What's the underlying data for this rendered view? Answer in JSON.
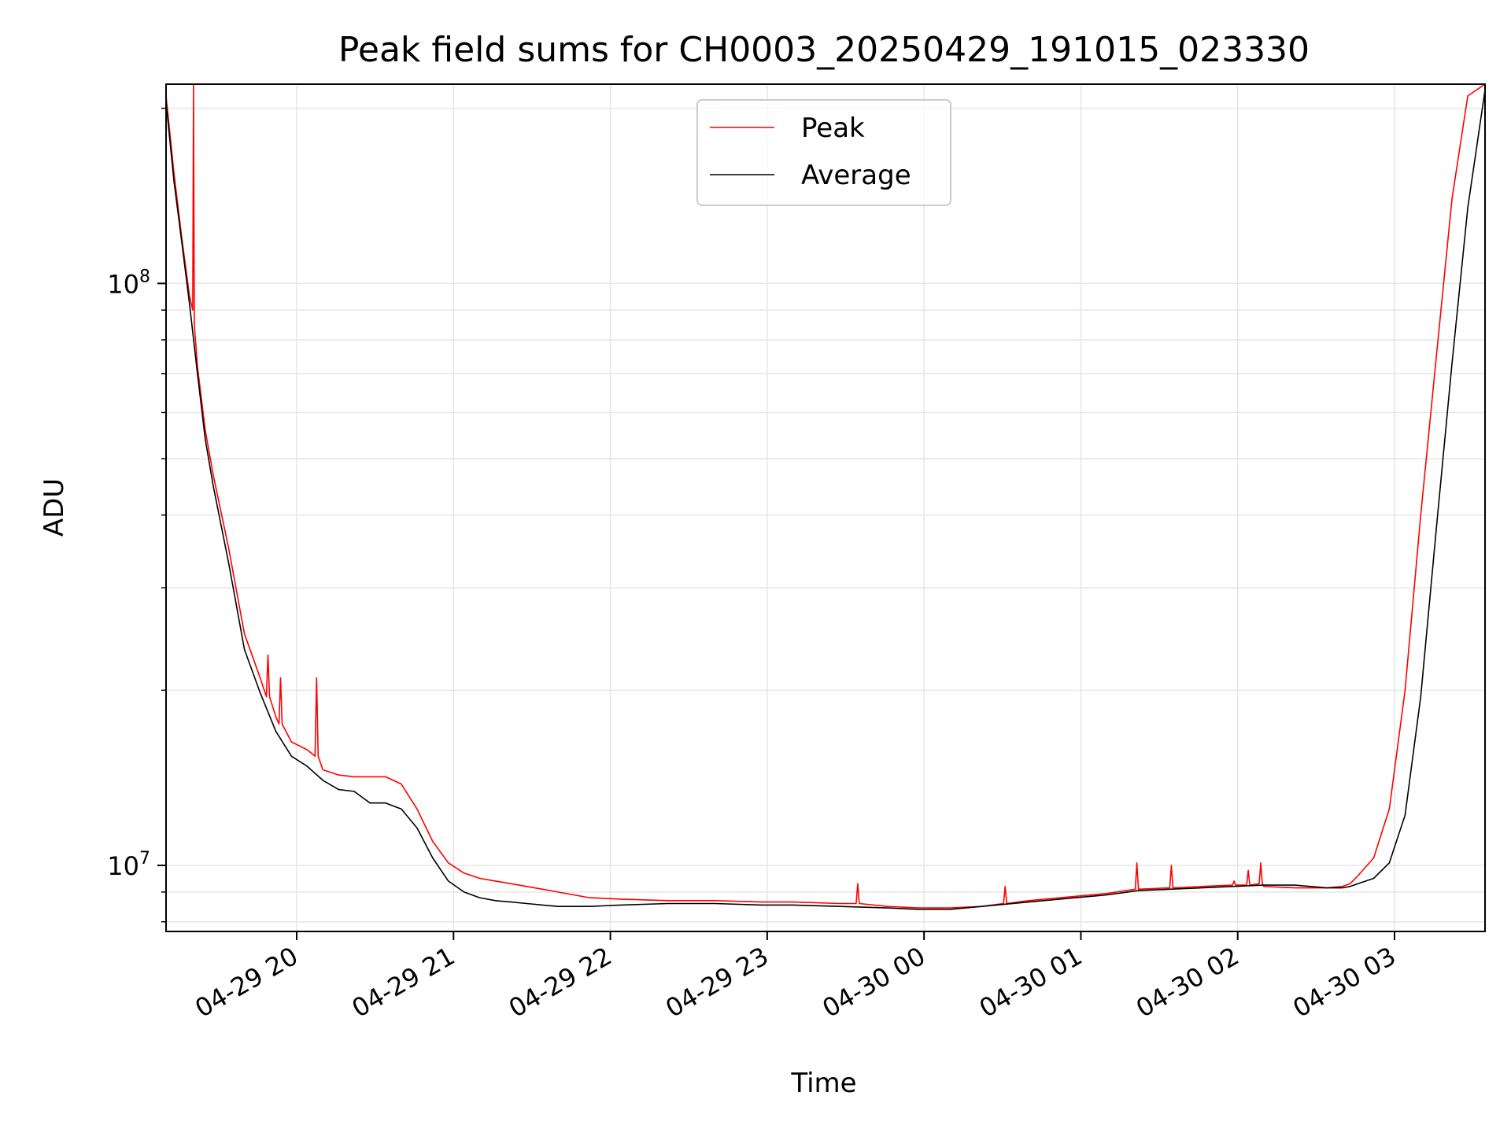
{
  "chart_data": {
    "type": "line",
    "title": "Peak field sums for CH0003_20250429_191015_023330",
    "xlabel": "Time",
    "ylabel": "ADU",
    "yscale": "log",
    "grid": true,
    "legend": "upper center",
    "x_unit": "hours after 04-29 19:10",
    "xlim": [
      0,
      8.41
    ],
    "ylim": [
      7700000,
      220000000
    ],
    "x_ticks": [
      {
        "label": "04-29 20",
        "x": 0.833
      },
      {
        "label": "04-29 21",
        "x": 1.833
      },
      {
        "label": "04-29 22",
        "x": 2.833
      },
      {
        "label": "04-29 23",
        "x": 3.833
      },
      {
        "label": "04-30 00",
        "x": 4.833
      },
      {
        "label": "04-30 01",
        "x": 5.833
      },
      {
        "label": "04-30 02",
        "x": 6.833
      },
      {
        "label": "04-30 03",
        "x": 7.833
      }
    ],
    "y_ticks": [
      {
        "value": 10000000,
        "base": "10",
        "exp": "7"
      },
      {
        "value": 100000000,
        "base": "10",
        "exp": "8"
      }
    ],
    "series": [
      {
        "name": "Peak",
        "color": "#ff0000",
        "x": [
          0.0,
          0.05,
          0.1,
          0.15,
          0.17,
          0.175,
          0.18,
          0.2,
          0.25,
          0.3,
          0.4,
          0.5,
          0.6,
          0.64,
          0.65,
          0.66,
          0.7,
          0.72,
          0.73,
          0.74,
          0.8,
          0.9,
          0.95,
          0.96,
          0.97,
          1.0,
          1.1,
          1.2,
          1.3,
          1.4,
          1.5,
          1.6,
          1.7,
          1.8,
          1.9,
          2.0,
          2.1,
          2.2,
          2.3,
          2.4,
          2.5,
          2.7,
          2.9,
          3.2,
          3.5,
          3.8,
          4.0,
          4.3,
          4.4,
          4.41,
          4.42,
          4.6,
          4.8,
          5.0,
          5.2,
          5.34,
          5.35,
          5.36,
          5.5,
          5.8,
          6.0,
          6.18,
          6.19,
          6.2,
          6.4,
          6.41,
          6.42,
          6.6,
          6.8,
          6.81,
          6.82,
          6.89,
          6.9,
          6.91,
          6.97,
          6.98,
          6.99,
          7.0,
          7.2,
          7.4,
          7.5,
          7.55,
          7.6,
          7.7,
          7.8,
          7.9,
          8.0,
          8.1,
          8.2,
          8.3,
          8.41
        ],
        "y": [
          210000000,
          155000000,
          120000000,
          95000000,
          90000000,
          220000000,
          85000000,
          72000000,
          56000000,
          47000000,
          35000000,
          25000000,
          21000000,
          19500000,
          23000000,
          19500000,
          18000000,
          17500000,
          21000000,
          17500000,
          16300000,
          15800000,
          15400000,
          21000000,
          15400000,
          14600000,
          14300000,
          14200000,
          14200000,
          14200000,
          13800000,
          12500000,
          11000000,
          10100000,
          9700000,
          9500000,
          9400000,
          9300000,
          9200000,
          9100000,
          9000000,
          8800000,
          8750000,
          8700000,
          8700000,
          8650000,
          8650000,
          8600000,
          8600000,
          9300000,
          8600000,
          8500000,
          8450000,
          8450000,
          8500000,
          8600000,
          9200000,
          8600000,
          8700000,
          8850000,
          8950000,
          9100000,
          10100000,
          9100000,
          9150000,
          10000000,
          9150000,
          9200000,
          9250000,
          9400000,
          9250000,
          9250000,
          9800000,
          9250000,
          9300000,
          10100000,
          9300000,
          9200000,
          9150000,
          9150000,
          9200000,
          9300000,
          9600000,
          10300000,
          12500000,
          20000000,
          40000000,
          75000000,
          140000000,
          210000000,
          220000000
        ]
      },
      {
        "name": "Average",
        "color": "#000000",
        "x": [
          0.0,
          0.05,
          0.1,
          0.15,
          0.2,
          0.25,
          0.3,
          0.4,
          0.5,
          0.6,
          0.7,
          0.8,
          0.9,
          1.0,
          1.1,
          1.2,
          1.3,
          1.4,
          1.5,
          1.6,
          1.7,
          1.8,
          1.9,
          2.0,
          2.1,
          2.2,
          2.3,
          2.4,
          2.5,
          2.7,
          2.9,
          3.2,
          3.5,
          3.8,
          4.0,
          4.3,
          4.6,
          4.8,
          5.0,
          5.2,
          5.5,
          5.8,
          6.0,
          6.2,
          6.4,
          6.6,
          6.8,
          7.0,
          7.2,
          7.4,
          7.5,
          7.55,
          7.6,
          7.7,
          7.8,
          7.9,
          8.0,
          8.1,
          8.2,
          8.3,
          8.41
        ],
        "y": [
          205000000,
          150000000,
          118000000,
          92000000,
          70000000,
          54000000,
          45000000,
          33000000,
          23500000,
          19800000,
          17000000,
          15400000,
          14800000,
          14000000,
          13500000,
          13400000,
          12800000,
          12800000,
          12500000,
          11600000,
          10300000,
          9400000,
          9000000,
          8800000,
          8700000,
          8650000,
          8600000,
          8550000,
          8500000,
          8500000,
          8550000,
          8600000,
          8600000,
          8550000,
          8550000,
          8500000,
          8450000,
          8400000,
          8400000,
          8500000,
          8650000,
          8800000,
          8900000,
          9050000,
          9100000,
          9150000,
          9200000,
          9250000,
          9250000,
          9150000,
          9150000,
          9200000,
          9300000,
          9500000,
          10100000,
          12200000,
          19500000,
          38000000,
          73000000,
          135000000,
          215000000
        ]
      }
    ]
  }
}
